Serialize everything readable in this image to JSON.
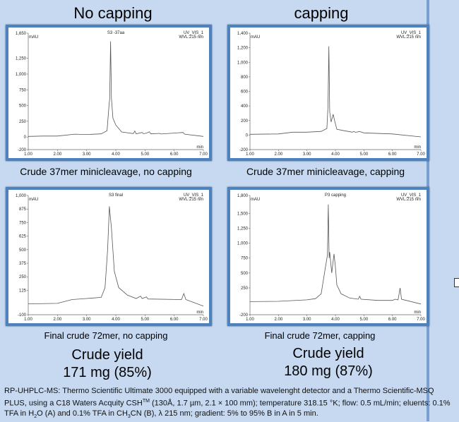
{
  "headings": {
    "left": "No capping",
    "right": "capping"
  },
  "captions": [
    "Crude 37mer minicleavage, no capping",
    "Crude 37mer minicleavage, capping",
    "Final crude 72mer, no capping",
    "Final crude 72mer, capping"
  ],
  "yields": [
    {
      "label": "Crude yield",
      "value": "171 mg (85%)"
    },
    {
      "label": "Crude yield",
      "value": "180 mg (87%)"
    }
  ],
  "footer": {
    "p1": "RP-UHPLC-MS: Thermo Scientific Ultimate 3000 equipped with a variable wavelenght detector and a Thermo Scientific-MSQ PLUS, using a C18 Waters Acquity CSH",
    "sup_tm": "TM",
    "p2": " (130Å, 1.7 µm, 2.1 × 100 mm); temperature 318.15 °K; flow: 0.5 mL/min; eluents: 0.1% TFA in H",
    "sub_2": "2",
    "p3": "O (A) and 0.1% TFA in CH",
    "sub_3": "3",
    "p4": "CN (B), λ 215 nm; gradient: 5% to 95% B in A in 5 min."
  },
  "colors": {
    "frame": "#4f81bd",
    "background": "#c6d9f0",
    "trace": "#555555"
  },
  "chart_data": [
    {
      "type": "line",
      "title": "S3 -37aa",
      "channel": "UV_VIS_1",
      "wavelength": "WVL:215 nm",
      "ylabel": "mAU",
      "xlabel": "min",
      "xlim": [
        1,
        7
      ],
      "ylim": [
        -200,
        1650
      ],
      "xticks": [
        "1.00",
        "2.00",
        "3.00",
        "4.00",
        "5.00",
        "6.00",
        "7.00"
      ],
      "yticks": [
        [
          -200,
          "-200"
        ],
        [
          0,
          "0"
        ],
        [
          250,
          "250"
        ],
        [
          500,
          "500"
        ],
        [
          750,
          "750"
        ],
        [
          1000,
          "1,000"
        ],
        [
          1250,
          "1,250"
        ],
        [
          1650,
          "1,650"
        ]
      ],
      "points": [
        [
          1,
          10
        ],
        [
          1.5,
          15
        ],
        [
          2,
          15
        ],
        [
          2.6,
          45
        ],
        [
          3,
          40
        ],
        [
          3.5,
          50
        ],
        [
          3.7,
          100
        ],
        [
          3.77,
          520
        ],
        [
          3.79,
          600
        ],
        [
          3.82,
          1520
        ],
        [
          3.85,
          620
        ],
        [
          3.9,
          300
        ],
        [
          4,
          190
        ],
        [
          4.2,
          80
        ],
        [
          4.6,
          55
        ],
        [
          4.65,
          95
        ],
        [
          4.7,
          50
        ],
        [
          4.9,
          72
        ],
        [
          4.95,
          52
        ],
        [
          5.05,
          62
        ],
        [
          5.15,
          82
        ],
        [
          5.2,
          50
        ],
        [
          5.5,
          58
        ],
        [
          5.55,
          48
        ],
        [
          6.3,
          72
        ],
        [
          6.36,
          45
        ],
        [
          7,
          10
        ]
      ]
    },
    {
      "type": "line",
      "title": "",
      "channel": "UV_VIS_1",
      "wavelength": "WVL:215 nm",
      "ylabel": "mAU",
      "xlabel": "min",
      "xlim": [
        1,
        7
      ],
      "ylim": [
        -200,
        1400
      ],
      "xticks": [
        "1.00",
        "2.00",
        "3.00",
        "4.00",
        "5.00",
        "6.00",
        "7.00"
      ],
      "yticks": [
        [
          -200,
          "-200"
        ],
        [
          0,
          "0"
        ],
        [
          200,
          "200"
        ],
        [
          400,
          "400"
        ],
        [
          600,
          "600"
        ],
        [
          800,
          "800"
        ],
        [
          1000,
          "1,000"
        ],
        [
          1200,
          "1,200"
        ],
        [
          1400,
          "1,400"
        ]
      ],
      "points": [
        [
          1,
          10
        ],
        [
          2,
          15
        ],
        [
          2.5,
          40
        ],
        [
          3,
          40
        ],
        [
          3.5,
          50
        ],
        [
          3.7,
          90
        ],
        [
          3.74,
          400
        ],
        [
          3.77,
          1220
        ],
        [
          3.8,
          320
        ],
        [
          3.85,
          180
        ],
        [
          3.92,
          285
        ],
        [
          3.97,
          200
        ],
        [
          4.05,
          80
        ],
        [
          4.3,
          60
        ],
        [
          4.6,
          40
        ],
        [
          4.65,
          50
        ],
        [
          4.7,
          38
        ],
        [
          4.85,
          48
        ],
        [
          5,
          30
        ],
        [
          6,
          15
        ],
        [
          7,
          -25
        ]
      ]
    },
    {
      "type": "line",
      "title": "S3 final",
      "channel": "UV_VIS_1",
      "wavelength": "WVL:215 nm",
      "ylabel": "mAU",
      "xlabel": "min",
      "xlim": [
        1,
        7
      ],
      "ylim": [
        -100,
        1000
      ],
      "xticks": [
        "1.00",
        "2.00",
        "3.00",
        "4.00",
        "5.00",
        "6.00",
        "7.00"
      ],
      "yticks": [
        [
          -100,
          "-100"
        ],
        [
          125,
          "125"
        ],
        [
          250,
          "250"
        ],
        [
          375,
          "375"
        ],
        [
          500,
          "500"
        ],
        [
          625,
          "625"
        ],
        [
          750,
          "750"
        ],
        [
          875,
          "875"
        ],
        [
          1000,
          "1,000"
        ]
      ],
      "points": [
        [
          1,
          0
        ],
        [
          2,
          5
        ],
        [
          2.5,
          40
        ],
        [
          3,
          50
        ],
        [
          3.5,
          60
        ],
        [
          3.63,
          150
        ],
        [
          3.72,
          500
        ],
        [
          3.78,
          900
        ],
        [
          3.85,
          700
        ],
        [
          3.95,
          300
        ],
        [
          4.1,
          150
        ],
        [
          4.4,
          80
        ],
        [
          4.7,
          50
        ],
        [
          4.85,
          72
        ],
        [
          4.9,
          50
        ],
        [
          5.05,
          65
        ],
        [
          5.1,
          45
        ],
        [
          6.25,
          40
        ],
        [
          6.33,
          95
        ],
        [
          6.4,
          40
        ],
        [
          7,
          -20
        ]
      ]
    },
    {
      "type": "line",
      "title": "P3 capping",
      "channel": "UV_VIS_1",
      "wavelength": "WVL:215 nm",
      "ylabel": "mAU",
      "xlabel": "min",
      "xlim": [
        1,
        7
      ],
      "ylim": [
        -200,
        1800
      ],
      "xticks": [
        "1.00",
        "2.00",
        "3.00",
        "4.00",
        "5.00",
        "6.00",
        "7.00"
      ],
      "yticks": [
        [
          -200,
          "-200"
        ],
        [
          250,
          "250"
        ],
        [
          500,
          "500"
        ],
        [
          750,
          "750"
        ],
        [
          1000,
          "1,000"
        ],
        [
          1250,
          "1,250"
        ],
        [
          1500,
          "1,500"
        ],
        [
          1800,
          "1,800"
        ]
      ],
      "points": [
        [
          1,
          20
        ],
        [
          2,
          25
        ],
        [
          3,
          50
        ],
        [
          3.3,
          70
        ],
        [
          3.5,
          150
        ],
        [
          3.65,
          600
        ],
        [
          3.72,
          800
        ],
        [
          3.75,
          1650
        ],
        [
          3.78,
          750
        ],
        [
          3.8,
          850
        ],
        [
          3.87,
          500
        ],
        [
          3.95,
          820
        ],
        [
          4,
          600
        ],
        [
          4.05,
          300
        ],
        [
          4.2,
          150
        ],
        [
          4.5,
          80
        ],
        [
          4.8,
          60
        ],
        [
          4.85,
          110
        ],
        [
          4.9,
          60
        ],
        [
          5.5,
          40
        ],
        [
          6,
          40
        ],
        [
          6.1,
          60
        ],
        [
          6.2,
          50
        ],
        [
          6.27,
          250
        ],
        [
          6.32,
          60
        ],
        [
          7,
          -20
        ]
      ]
    }
  ]
}
